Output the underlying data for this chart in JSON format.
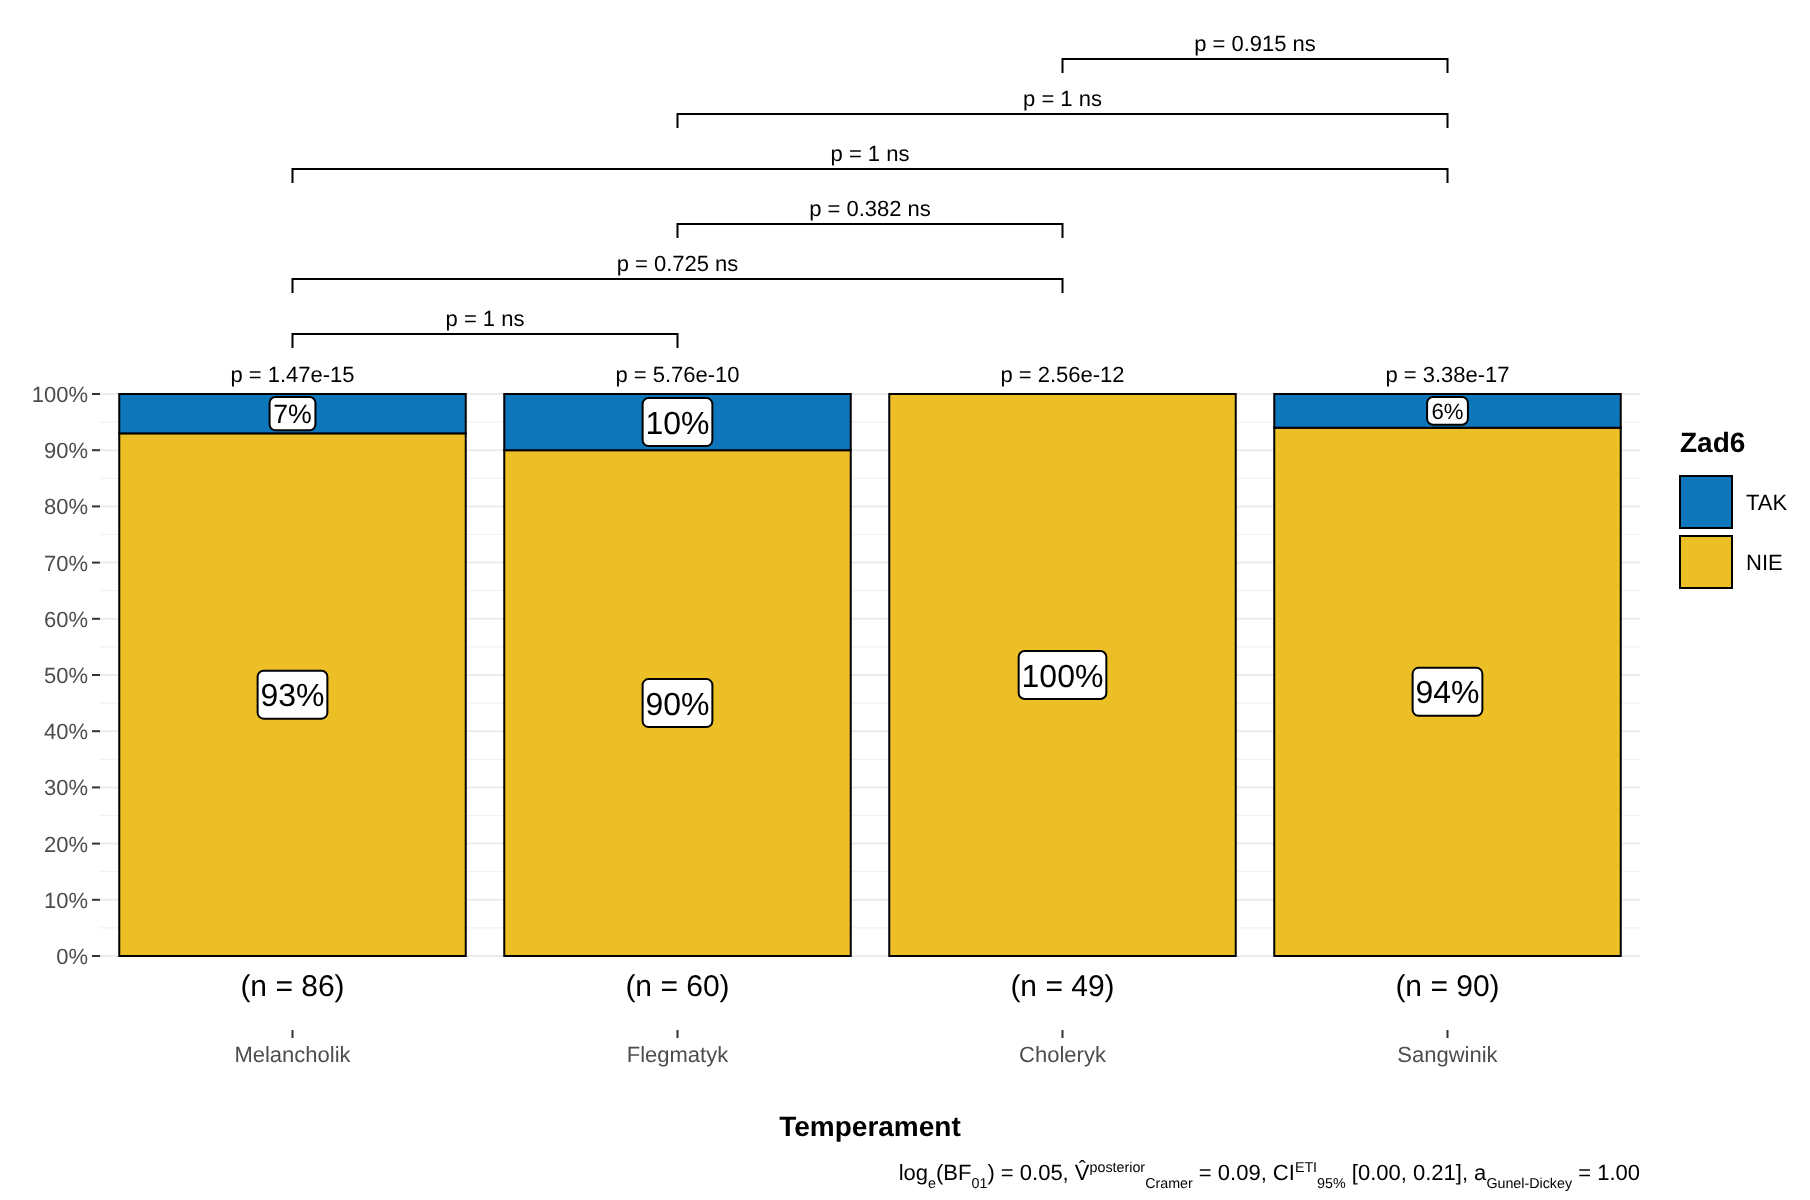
{
  "chart_data": {
    "type": "bar",
    "stacked": true,
    "xlabel": "Temperament",
    "legend_title": "Zad6",
    "legend": "right",
    "grid": "y",
    "categories": [
      "Melancholik",
      "Flegmatyk",
      "Choleryk",
      "Sangwinik"
    ],
    "ylim": [
      0,
      100
    ],
    "yticks": [
      {
        "value": 0,
        "label": "0%"
      },
      {
        "value": 10,
        "label": "10%"
      },
      {
        "value": 20,
        "label": "20%"
      },
      {
        "value": 30,
        "label": "30%"
      },
      {
        "value": 40,
        "label": "40%"
      },
      {
        "value": 50,
        "label": "50%"
      },
      {
        "value": 60,
        "label": "60%"
      },
      {
        "value": 70,
        "label": "70%"
      },
      {
        "value": 80,
        "label": "80%"
      },
      {
        "value": 90,
        "label": "90%"
      },
      {
        "value": 100,
        "label": "100%"
      }
    ],
    "series": [
      {
        "name": "NIE",
        "color": "#ebbf25",
        "values": [
          93,
          90,
          100,
          94
        ],
        "value_labels": [
          "93%",
          "90%",
          "100%",
          "94%"
        ]
      },
      {
        "name": "TAK",
        "color": "#0e76ba",
        "values": [
          7,
          10,
          0,
          6
        ],
        "value_labels": [
          "7%",
          "10%",
          null,
          "6%"
        ]
      }
    ],
    "annotations": [
      "p = 1 ns",
      "p = 0.725 ns",
      "p = 0.382 ns",
      "p = 1 ns",
      "p = 1 ns",
      "p = 0.915 ns",
      {
        "text": "p = 1.47e-15",
        "x": "Melancholik",
        "y": 100
      },
      {
        "text": "p = 5.76e-10",
        "x": "Flegmatyk",
        "y": 100
      },
      {
        "text": "p = 2.56e-12",
        "x": "Choleryk",
        "y": 100
      },
      {
        "text": "p = 3.38e-17",
        "x": "Sangwinik",
        "y": 100
      },
      {
        "text": "(n = 86)",
        "x": "Melancholik",
        "y": 0
      },
      {
        "text": "(n = 60)",
        "x": "Flegmatyk",
        "y": 0
      },
      {
        "text": "(n = 49)",
        "x": "Choleryk",
        "y": 0
      },
      {
        "text": "(n = 90)",
        "x": "Sangwinik",
        "y": 0
      },
      "log$_{e}$(BF$_{01}$) = 0.05, V̂$^{posterior}$$_{Cramer}$ = 0.09, CI$^{ETI}$$_{95%}$ [0.00, 0.21], a$_{Gunel-Dickey}$ = 1.00"
    ]
  }
}
